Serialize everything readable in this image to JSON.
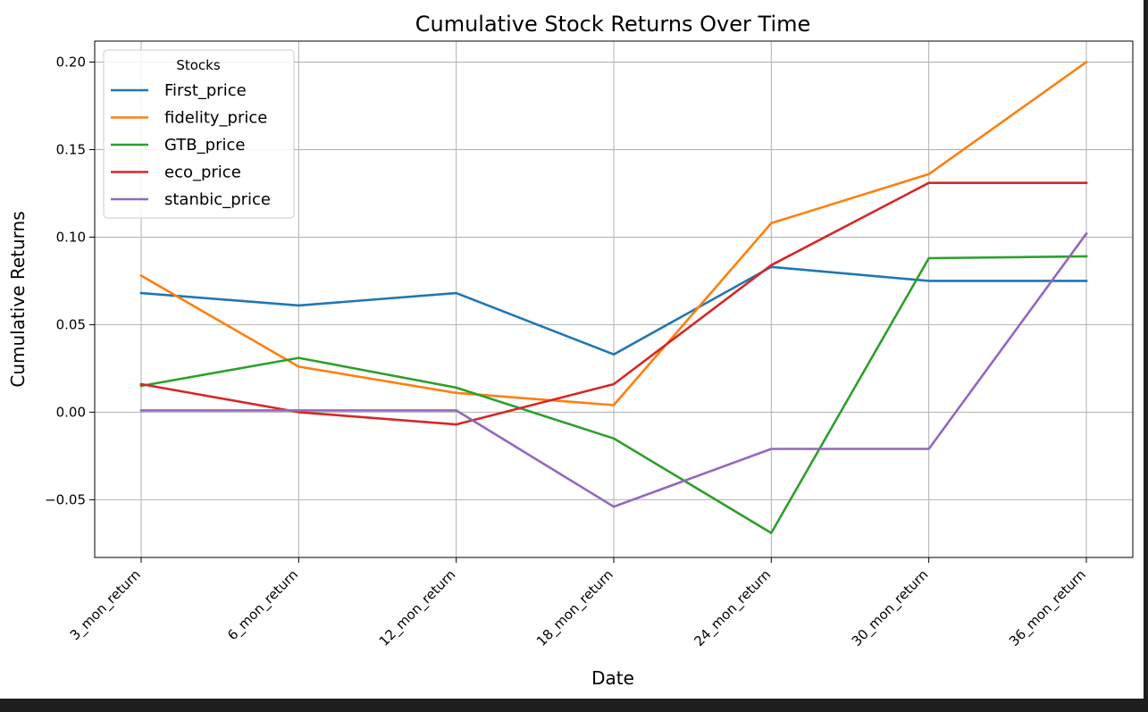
{
  "chart_data": {
    "type": "line",
    "title": "Cumulative Stock Returns Over Time",
    "xlabel": "Date",
    "ylabel": "Cumulative Returns",
    "categories": [
      "3_mon_return",
      "6_mon_return",
      "12_mon_return",
      "18_mon_return",
      "24_mon_return",
      "30_mon_return",
      "36_mon_return"
    ],
    "ylim": [
      -0.083,
      0.212
    ],
    "yticks": [
      -0.05,
      0.0,
      0.05,
      0.1,
      0.15,
      0.2
    ],
    "ytick_labels": [
      "−0.05",
      "0.00",
      "0.05",
      "0.10",
      "0.15",
      "0.20"
    ],
    "grid": true,
    "legend": {
      "title": "Stocks",
      "placement": "upper-left"
    },
    "series": [
      {
        "name": "First_price",
        "color": "#1f77b4",
        "values": [
          0.068,
          0.061,
          0.068,
          0.033,
          0.083,
          0.075,
          0.075
        ]
      },
      {
        "name": "fidelity_price",
        "color": "#ff7f0e",
        "values": [
          0.078,
          0.026,
          0.011,
          0.004,
          0.108,
          0.136,
          0.2
        ]
      },
      {
        "name": "GTB_price",
        "color": "#2ca02c",
        "values": [
          0.015,
          0.031,
          0.014,
          -0.015,
          -0.069,
          0.088,
          0.089
        ]
      },
      {
        "name": "eco_price",
        "color": "#d62728",
        "values": [
          0.016,
          0.0,
          -0.007,
          0.016,
          0.084,
          0.131,
          0.131
        ]
      },
      {
        "name": "stanbic_price",
        "color": "#9467bd",
        "values": [
          0.001,
          0.001,
          0.001,
          -0.054,
          -0.021,
          -0.021,
          0.102
        ]
      }
    ]
  }
}
